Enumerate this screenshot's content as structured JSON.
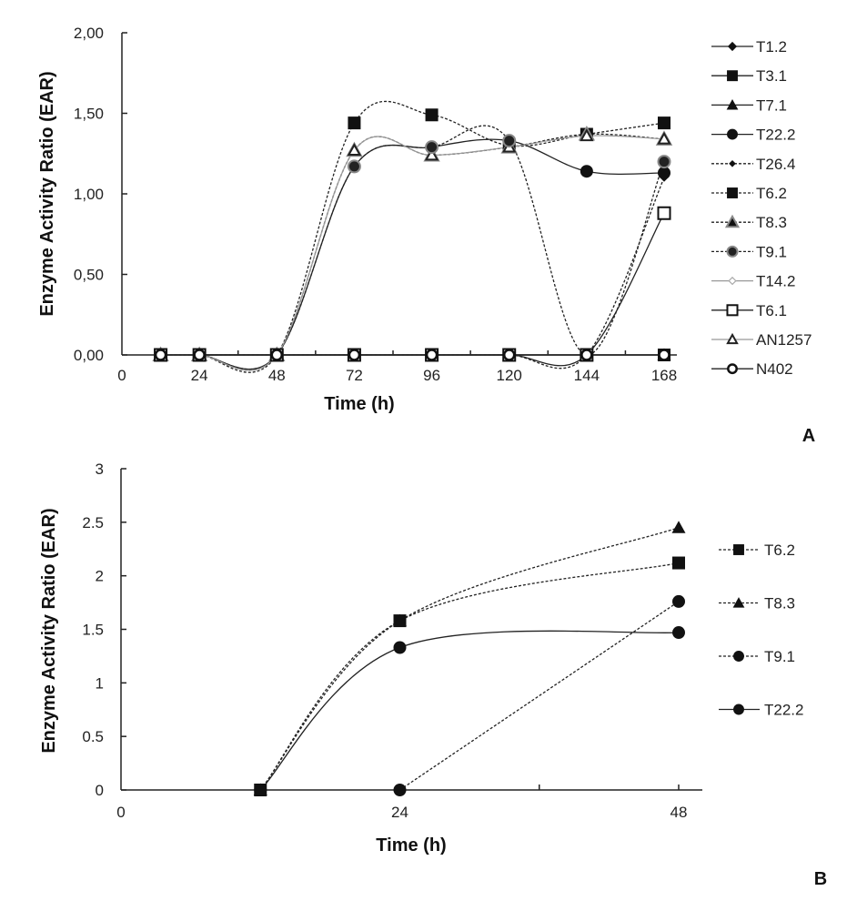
{
  "chart_data": [
    {
      "panel": "A",
      "type": "line",
      "xlabel": "Time (h)",
      "ylabel": "Enzyme Activity Ratio (EAR)",
      "xlim": [
        0,
        168
      ],
      "ylim": [
        0,
        2
      ],
      "x_ticks": [
        "0",
        "24",
        "48",
        "72",
        "96",
        "120",
        "144",
        "168"
      ],
      "y_ticks": [
        "0,00",
        "0,50",
        "1,00",
        "1,50",
        "2,00"
      ],
      "grid": false,
      "legend_position": "right",
      "x": [
        12,
        24,
        48,
        72,
        96,
        120,
        144,
        168
      ],
      "series": [
        {
          "name": "T1.2",
          "marker": "diamond",
          "line": "solid",
          "color": "#111111",
          "values": [
            0,
            0,
            0,
            0,
            0,
            0,
            0,
            0
          ]
        },
        {
          "name": "T3.1",
          "marker": "square",
          "line": "solid",
          "color": "#111111",
          "values": [
            0,
            0,
            0,
            0,
            0,
            0,
            0,
            0
          ]
        },
        {
          "name": "T7.1",
          "marker": "triangle",
          "line": "solid",
          "color": "#111111",
          "values": [
            0,
            0,
            0,
            0,
            0,
            0,
            0,
            0
          ]
        },
        {
          "name": "T22.2",
          "marker": "circle",
          "line": "solid",
          "color": "#111111",
          "values": [
            0,
            0,
            0,
            1.17,
            1.29,
            1.33,
            1.14,
            1.13
          ]
        },
        {
          "name": "T26.4",
          "marker": "diamond-small",
          "line": "dashed",
          "color": "#111111",
          "values": [
            0,
            0,
            0,
            0,
            0,
            0,
            0,
            1.1
          ]
        },
        {
          "name": "T6.2",
          "marker": "square",
          "line": "dashed",
          "color": "#111111",
          "values": [
            0,
            0,
            0,
            1.44,
            1.49,
            1.3,
            1.37,
            1.44
          ]
        },
        {
          "name": "T8.3",
          "marker": "triangle-gray",
          "line": "dashed",
          "color": "#555555",
          "values": [
            0,
            0,
            0,
            1.27,
            1.24,
            1.29,
            1.37,
            1.34
          ]
        },
        {
          "name": "T9.1",
          "marker": "circle-gray",
          "line": "dashed",
          "color": "#333333",
          "values": [
            0,
            0,
            0,
            1.17,
            1.29,
            1.33,
            0,
            1.2
          ]
        },
        {
          "name": "T14.2",
          "marker": "diamond-open",
          "line": "solid-gray",
          "color": "#aaaaaa",
          "values": [
            0,
            0,
            0,
            0,
            0,
            0,
            0,
            0
          ]
        },
        {
          "name": "T6.1",
          "marker": "square-open",
          "line": "solid",
          "color": "#111111",
          "values": [
            0,
            0,
            0,
            0,
            0,
            0,
            0,
            0.88
          ]
        },
        {
          "name": "AN1257",
          "marker": "triangle-open",
          "line": "solid-gray",
          "color": "#777777",
          "values": [
            0,
            0,
            0,
            1.27,
            1.24,
            1.29,
            1.36,
            1.34
          ]
        },
        {
          "name": "N402",
          "marker": "circle-open",
          "line": "solid",
          "color": "#111111",
          "values": [
            0,
            0,
            0,
            0,
            0,
            0,
            0,
            0
          ]
        }
      ],
      "panel_label": "A"
    },
    {
      "panel": "B",
      "type": "line",
      "xlabel": "Time (h)",
      "ylabel": "Enzyme Activity Ratio (EAR)",
      "xlim": [
        0,
        48
      ],
      "ylim": [
        0,
        3
      ],
      "x_ticks": [
        "0",
        "24",
        "48"
      ],
      "y_ticks": [
        "0",
        "0.5",
        "1",
        "1.5",
        "2",
        "2.5",
        "3"
      ],
      "grid": false,
      "legend_position": "right",
      "series": [
        {
          "name": "T6.2",
          "marker": "square",
          "line": "dashed",
          "x": [
            12,
            24,
            48
          ],
          "values": [
            0,
            1.58,
            2.12
          ]
        },
        {
          "name": "T8.3",
          "marker": "triangle",
          "line": "dashed",
          "x": [
            12,
            24,
            48
          ],
          "values": [
            0,
            1.58,
            2.45
          ]
        },
        {
          "name": "T9.1",
          "marker": "circle",
          "line": "dashed",
          "x": [
            24,
            48
          ],
          "values": [
            0,
            1.76
          ]
        },
        {
          "name": "T22.2",
          "marker": "circle",
          "line": "solid",
          "x": [
            12,
            24,
            48
          ],
          "values": [
            0,
            1.33,
            1.47
          ]
        }
      ],
      "panel_label": "B"
    }
  ]
}
